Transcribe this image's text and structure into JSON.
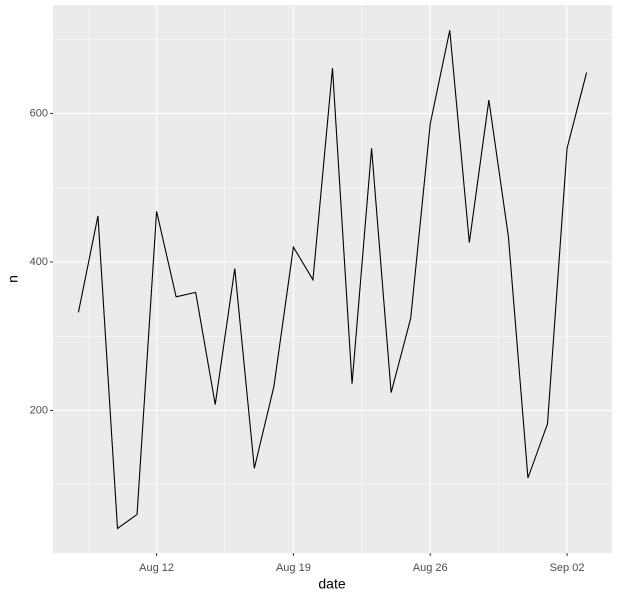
{
  "chart_data": {
    "type": "line",
    "x": [
      "Aug 08",
      "Aug 09",
      "Aug 10",
      "Aug 11",
      "Aug 12",
      "Aug 13",
      "Aug 14",
      "Aug 15",
      "Aug 16",
      "Aug 17",
      "Aug 18",
      "Aug 19",
      "Aug 20",
      "Aug 21",
      "Aug 22",
      "Aug 23",
      "Aug 24",
      "Aug 25",
      "Aug 26",
      "Aug 27",
      "Aug 28",
      "Aug 29",
      "Aug 30",
      "Aug 31",
      "Sep 01",
      "Sep 02",
      "Sep 03"
    ],
    "values": [
      332,
      462,
      41,
      60,
      468,
      353,
      359,
      208,
      391,
      122,
      232,
      420,
      376,
      661,
      236,
      553,
      224,
      324,
      586,
      712,
      426,
      618,
      434,
      109,
      182,
      553,
      655
    ],
    "color": "#000000",
    "xlabel": "date",
    "ylabel": "n",
    "xticks": [
      "Aug 12",
      "Aug 19",
      "Aug 26",
      "Sep 02"
    ],
    "ylim": [
      8,
      746
    ],
    "yticks": [
      200,
      400,
      600
    ],
    "grid": true
  }
}
